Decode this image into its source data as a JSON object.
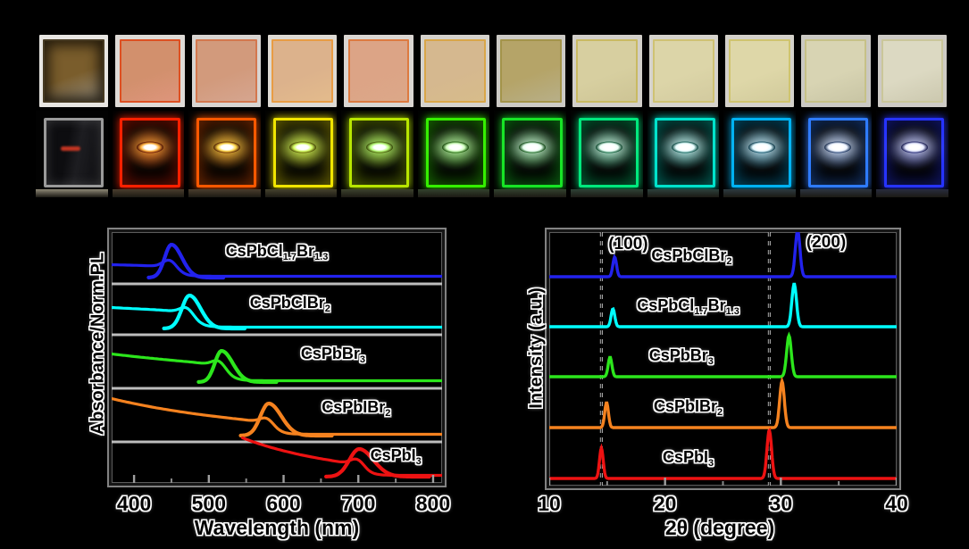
{
  "figure": {
    "background": "#000000",
    "rows": {
      "ambient_row_description": "thin-film photographs under ambient light",
      "uv_row_description": "same films photographed under UV excitation"
    }
  },
  "films": {
    "ambient": [
      {
        "slide": "#e8e6e2",
        "film": "#7a5d2c",
        "edge": "#463a22",
        "vignette": true
      },
      {
        "slide": "#dedad6",
        "film": "#d2906d",
        "edge": "#dd5022"
      },
      {
        "slide": "#d8d4d1",
        "film": "#d29a7c",
        "edge": "#d3774e"
      },
      {
        "slide": "#dedad4",
        "film": "#dcb28c",
        "edge": "#e89c44"
      },
      {
        "slide": "#dad6d2",
        "film": "#dca486",
        "edge": "#dd7a40"
      },
      {
        "slide": "#d5d2cc",
        "film": "#d5b88f",
        "edge": "#d9a649"
      },
      {
        "slide": "#cccac5",
        "film": "#b5a468",
        "edge": "#a3944a"
      },
      {
        "slide": "#d2cfc9",
        "film": "#d7cfa0",
        "edge": "#c9ba62"
      },
      {
        "slide": "#d6d3cc",
        "film": "#dcd5a8",
        "edge": "#cfc273"
      },
      {
        "slide": "#d4d1ca",
        "film": "#ded7a8",
        "edge": "#cfc46e"
      },
      {
        "slide": "#cbc9c3",
        "film": "#d8d4b3",
        "edge": "#c6c187"
      },
      {
        "slide": "#cecbc5",
        "film": "#dcd9c2",
        "edge": "#cac69a"
      }
    ],
    "uv": [
      {
        "glow": "#9a9a9a",
        "glass": true,
        "streak": "#c23522",
        "ledge": "#8d8775"
      },
      {
        "glow": "#ff2000",
        "spot": "#ffb340",
        "ledge": "#4a3d2c"
      },
      {
        "glow": "#ff5800",
        "spot": "#ffd84a",
        "ledge": "#4a3d2c"
      },
      {
        "glow": "#f0e400",
        "spot": "#d6ff66",
        "ledge": "#45422c"
      },
      {
        "glow": "#b8e600",
        "spot": "#baff7e",
        "ledge": "#3c422c"
      },
      {
        "glow": "#35ef00",
        "spot": "#d2ffc0",
        "ledge": "#32422c"
      },
      {
        "glow": "#17e426",
        "spot": "#e8fff0",
        "ledge": "#32422e"
      },
      {
        "glow": "#00e87d",
        "spot": "#eafff6",
        "ledge": "#2e4236"
      },
      {
        "glow": "#00e2cb",
        "spot": "#eaffff",
        "ledge": "#2c403c"
      },
      {
        "glow": "#00b2f2",
        "spot": "#e6faff",
        "ledge": "#2c3a40"
      },
      {
        "glow": "#2e7bff",
        "spot": "#eef4ff",
        "ledge": "#2c3440"
      },
      {
        "glow": "#2633ff",
        "spot": "#e8ecff",
        "ledge": "#282c3e"
      }
    ]
  },
  "chart_data": [
    {
      "type": "line",
      "title": "",
      "xlabel": "Wavelength (nm)",
      "ylabel": "Absorbance/Norm.PL",
      "xlim": [
        370,
        812
      ],
      "x_ticks": [
        400,
        500,
        600,
        700,
        800
      ],
      "x_minor_ticks": [
        450,
        550,
        650,
        750
      ],
      "grid": false,
      "legend_position": "none",
      "panels": [
        {
          "label": "CsPbCl_{1.7}Br_{1.3}",
          "color": "#2222ee",
          "pl_peak_nm": 450,
          "pl_amp": 37,
          "sig_l": 9,
          "sig_r": 14,
          "abs_start_nm": 370,
          "abs_onset_nm": 455,
          "abs_amp": 13,
          "abs_decay": 600,
          "abs_bump": 10,
          "abs_tail": 3.5,
          "label_x": 0.5
        },
        {
          "label": "CsPbClBr_{2}",
          "color": "#00ffff",
          "pl_peak_nm": 474,
          "pl_amp": 37,
          "sig_l": 10,
          "sig_r": 15,
          "abs_start_nm": 370,
          "abs_onset_nm": 478,
          "abs_amp": 22,
          "abs_decay": 500,
          "abs_bump": 9,
          "abs_tail": 3.5,
          "label_x": 0.54
        },
        {
          "label": "CsPbBr_{3}",
          "color": "#2ce61c",
          "pl_peak_nm": 517,
          "pl_amp": 35,
          "sig_l": 9,
          "sig_r": 15,
          "abs_start_nm": 370,
          "abs_onset_nm": 521,
          "abs_amp": 30,
          "abs_decay": 300,
          "abs_bump": 9,
          "abs_tail": 3.5,
          "label_x": 0.67
        },
        {
          "label": "CsPbIBr_{2}",
          "color": "#f5821f",
          "pl_peak_nm": 580,
          "pl_amp": 36,
          "sig_l": 11,
          "sig_r": 17,
          "abs_start_nm": 370,
          "abs_onset_nm": 585,
          "abs_amp": 40,
          "abs_decay": 200,
          "abs_bump": 8,
          "abs_tail": 3.5,
          "label_x": 0.74
        },
        {
          "label": "CsPbI_{3}",
          "color": "#ee1212",
          "pl_peak_nm": 701,
          "pl_amp": 31,
          "sig_l": 13,
          "sig_r": 19,
          "abs_start_nm": 545,
          "abs_onset_nm": 706,
          "abs_amp": 42,
          "abs_decay": 130,
          "abs_bump": 9,
          "abs_tail": 3.5,
          "label_x": 0.86
        }
      ]
    },
    {
      "type": "line",
      "title": "",
      "xlabel": "2θ (degree)",
      "ylabel": "Intensity (a.u.)",
      "xlim": [
        10,
        40
      ],
      "x_ticks": [
        10,
        20,
        30,
        40
      ],
      "x_minor_ticks": [
        15,
        25,
        35
      ],
      "grid": false,
      "dashed_guides_deg": [
        14.5,
        29.0
      ],
      "reflection_labels": [
        "(100)",
        "(200)"
      ],
      "series": [
        {
          "label": "CsPbClBr_{2}",
          "color": "#2222ee",
          "peaks_deg": [
            15.65,
            31.45
          ],
          "peak_heights": [
            22,
            52
          ],
          "label_x": 0.41
        },
        {
          "label": "CsPbCl_{1.7}Br_{1.3}",
          "color": "#00ffff",
          "peaks_deg": [
            15.5,
            31.15
          ],
          "peak_heights": [
            20,
            48
          ],
          "label_x": 0.4
        },
        {
          "label": "CsPbBr_{3}",
          "color": "#2ce61c",
          "peaks_deg": [
            15.25,
            30.7
          ],
          "peak_heights": [
            22,
            46
          ],
          "label_x": 0.38
        },
        {
          "label": "CsPbIBr_{2}",
          "color": "#f5821f",
          "peaks_deg": [
            14.95,
            30.1
          ],
          "peak_heights": [
            28,
            52
          ],
          "label_x": 0.4
        },
        {
          "label": "CsPbI_{3}",
          "color": "#ee1212",
          "peaks_deg": [
            14.5,
            29.0
          ],
          "peak_heights": [
            34,
            54
          ],
          "label_x": 0.4
        }
      ]
    }
  ]
}
